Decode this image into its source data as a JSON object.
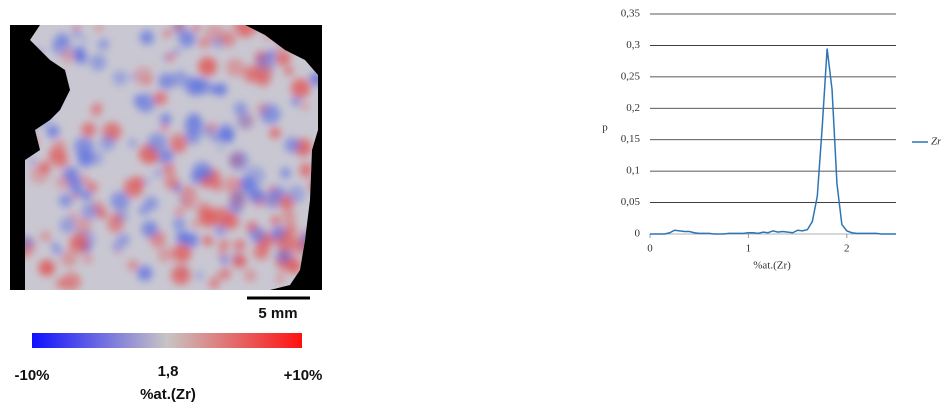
{
  "map": {
    "scale_bar": "5 mm",
    "colorbar": {
      "min_label": "-10%",
      "center_label": "1,8",
      "max_label": "+10%",
      "quantity": "%at.(Zr)"
    }
  },
  "chart_data": {
    "type": "line",
    "x_label": "%at.(Zr)",
    "y_label": "p",
    "x": [
      0,
      0.05,
      0.1,
      0.15,
      0.2,
      0.25,
      0.3,
      0.35,
      0.4,
      0.45,
      0.5,
      0.55,
      0.6,
      0.65,
      0.7,
      0.75,
      0.8,
      0.85,
      0.9,
      0.95,
      1,
      1.05,
      1.1,
      1.15,
      1.2,
      1.25,
      1.3,
      1.35,
      1.4,
      1.45,
      1.5,
      1.55,
      1.6,
      1.65,
      1.7,
      1.75,
      1.8,
      1.85,
      1.9,
      1.95,
      2,
      2.05,
      2.1,
      2.15,
      2.2,
      2.25,
      2.3,
      2.35,
      2.4,
      2.45,
      2.5
    ],
    "series": [
      {
        "name": "Zr",
        "color": "#2e75b6",
        "values": [
          0,
          0,
          0,
          0,
          0.002,
          0.006,
          0.005,
          0.004,
          0.004,
          0.002,
          0.001,
          0.001,
          0.001,
          0,
          0,
          0,
          0.001,
          0.001,
          0.001,
          0.001,
          0.002,
          0.002,
          0.001,
          0.003,
          0.002,
          0.005,
          0.003,
          0.004,
          0.003,
          0.002,
          0.006,
          0.005,
          0.007,
          0.02,
          0.06,
          0.17,
          0.295,
          0.23,
          0.08,
          0.015,
          0.005,
          0.002,
          0.001,
          0.001,
          0.001,
          0.001,
          0.001,
          0,
          0,
          0,
          0
        ]
      }
    ],
    "xlim": [
      0,
      2.5
    ],
    "xticks": [
      0,
      1,
      2
    ],
    "ylim": [
      0,
      0.35
    ],
    "yticks": [
      0,
      {
        "value": 0.05,
        "label": "0,05"
      },
      {
        "value": 0.1,
        "label": "0,1"
      },
      {
        "value": 0.15,
        "label": "0,15"
      },
      {
        "value": 0.2,
        "label": "0,2"
      },
      {
        "value": 0.25,
        "label": "0,25"
      },
      {
        "value": 0.3,
        "label": "0,3"
      },
      {
        "value": 0.35,
        "label": "0,35"
      }
    ],
    "grid": true,
    "legend": "right"
  }
}
